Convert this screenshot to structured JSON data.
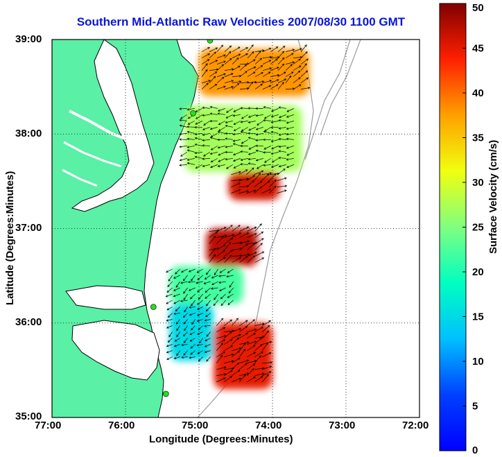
{
  "title": "Southern Mid-Atlantic Raw Velocities 2007/08/30 1100 GMT",
  "xlabel": "Longitude (Degrees:Minutes)",
  "ylabel": "Latitude (Degrees:Minutes)",
  "colorbar": {
    "label": "Surface Velocity (cm/s)",
    "ticks": [
      "0",
      "5",
      "10",
      "15",
      "20",
      "25",
      "30",
      "35",
      "40",
      "45",
      "50"
    ],
    "range": [
      0,
      50
    ],
    "colormap": "jet"
  },
  "map": {
    "lon_ticks": [
      "77:00",
      "76:00",
      "75:00",
      "74:00",
      "73:00",
      "72:00"
    ],
    "lat_ticks": [
      "39:00",
      "38:00",
      "37:00",
      "36:00",
      "35:00"
    ],
    "lon_range": [
      -77,
      -72
    ],
    "lat_range": [
      35,
      39
    ],
    "grid": "dotted",
    "land_color": "#5af0a6",
    "water_color": "#ffffff",
    "bathymetry_color": "#9a9a9a",
    "vector_color": "#000000",
    "site_marker_color": "#22e022",
    "radar_sites": [
      {
        "lon": -74.85,
        "lat": 38.99
      },
      {
        "lon": -75.08,
        "lat": 38.22
      },
      {
        "lon": -75.62,
        "lat": 36.17
      },
      {
        "lon": -75.45,
        "lat": 35.25
      }
    ]
  },
  "chart_data": {
    "type": "heatmap",
    "title": "Southern Mid-Atlantic Raw Velocities 2007/08/30 1100 GMT",
    "xlabel": "Longitude (Degrees:Minutes)",
    "ylabel": "Latitude (Degrees:Minutes)",
    "value_label": "Surface Velocity (cm/s)",
    "value_range": [
      0,
      50
    ],
    "regions": [
      {
        "lat_range": [
          38.4,
          38.9
        ],
        "lon_range": [
          -75.0,
          -73.5
        ],
        "velocity": 38
      },
      {
        "lat_range": [
          37.6,
          38.3
        ],
        "lon_range": [
          -75.2,
          -73.6
        ],
        "velocity": 27
      },
      {
        "lat_range": [
          37.3,
          37.6
        ],
        "lon_range": [
          -74.6,
          -73.9
        ],
        "velocity": 46
      },
      {
        "lat_range": [
          36.6,
          37.0
        ],
        "lon_range": [
          -74.9,
          -74.2
        ],
        "velocity": 47
      },
      {
        "lat_range": [
          36.2,
          36.6
        ],
        "lon_range": [
          -75.4,
          -74.4
        ],
        "velocity": 22
      },
      {
        "lat_range": [
          35.3,
          36.0
        ],
        "lon_range": [
          -74.8,
          -74.0
        ],
        "velocity": 45
      },
      {
        "lat_range": [
          35.6,
          36.2
        ],
        "lon_range": [
          -75.4,
          -74.8
        ],
        "velocity": 15
      }
    ]
  }
}
